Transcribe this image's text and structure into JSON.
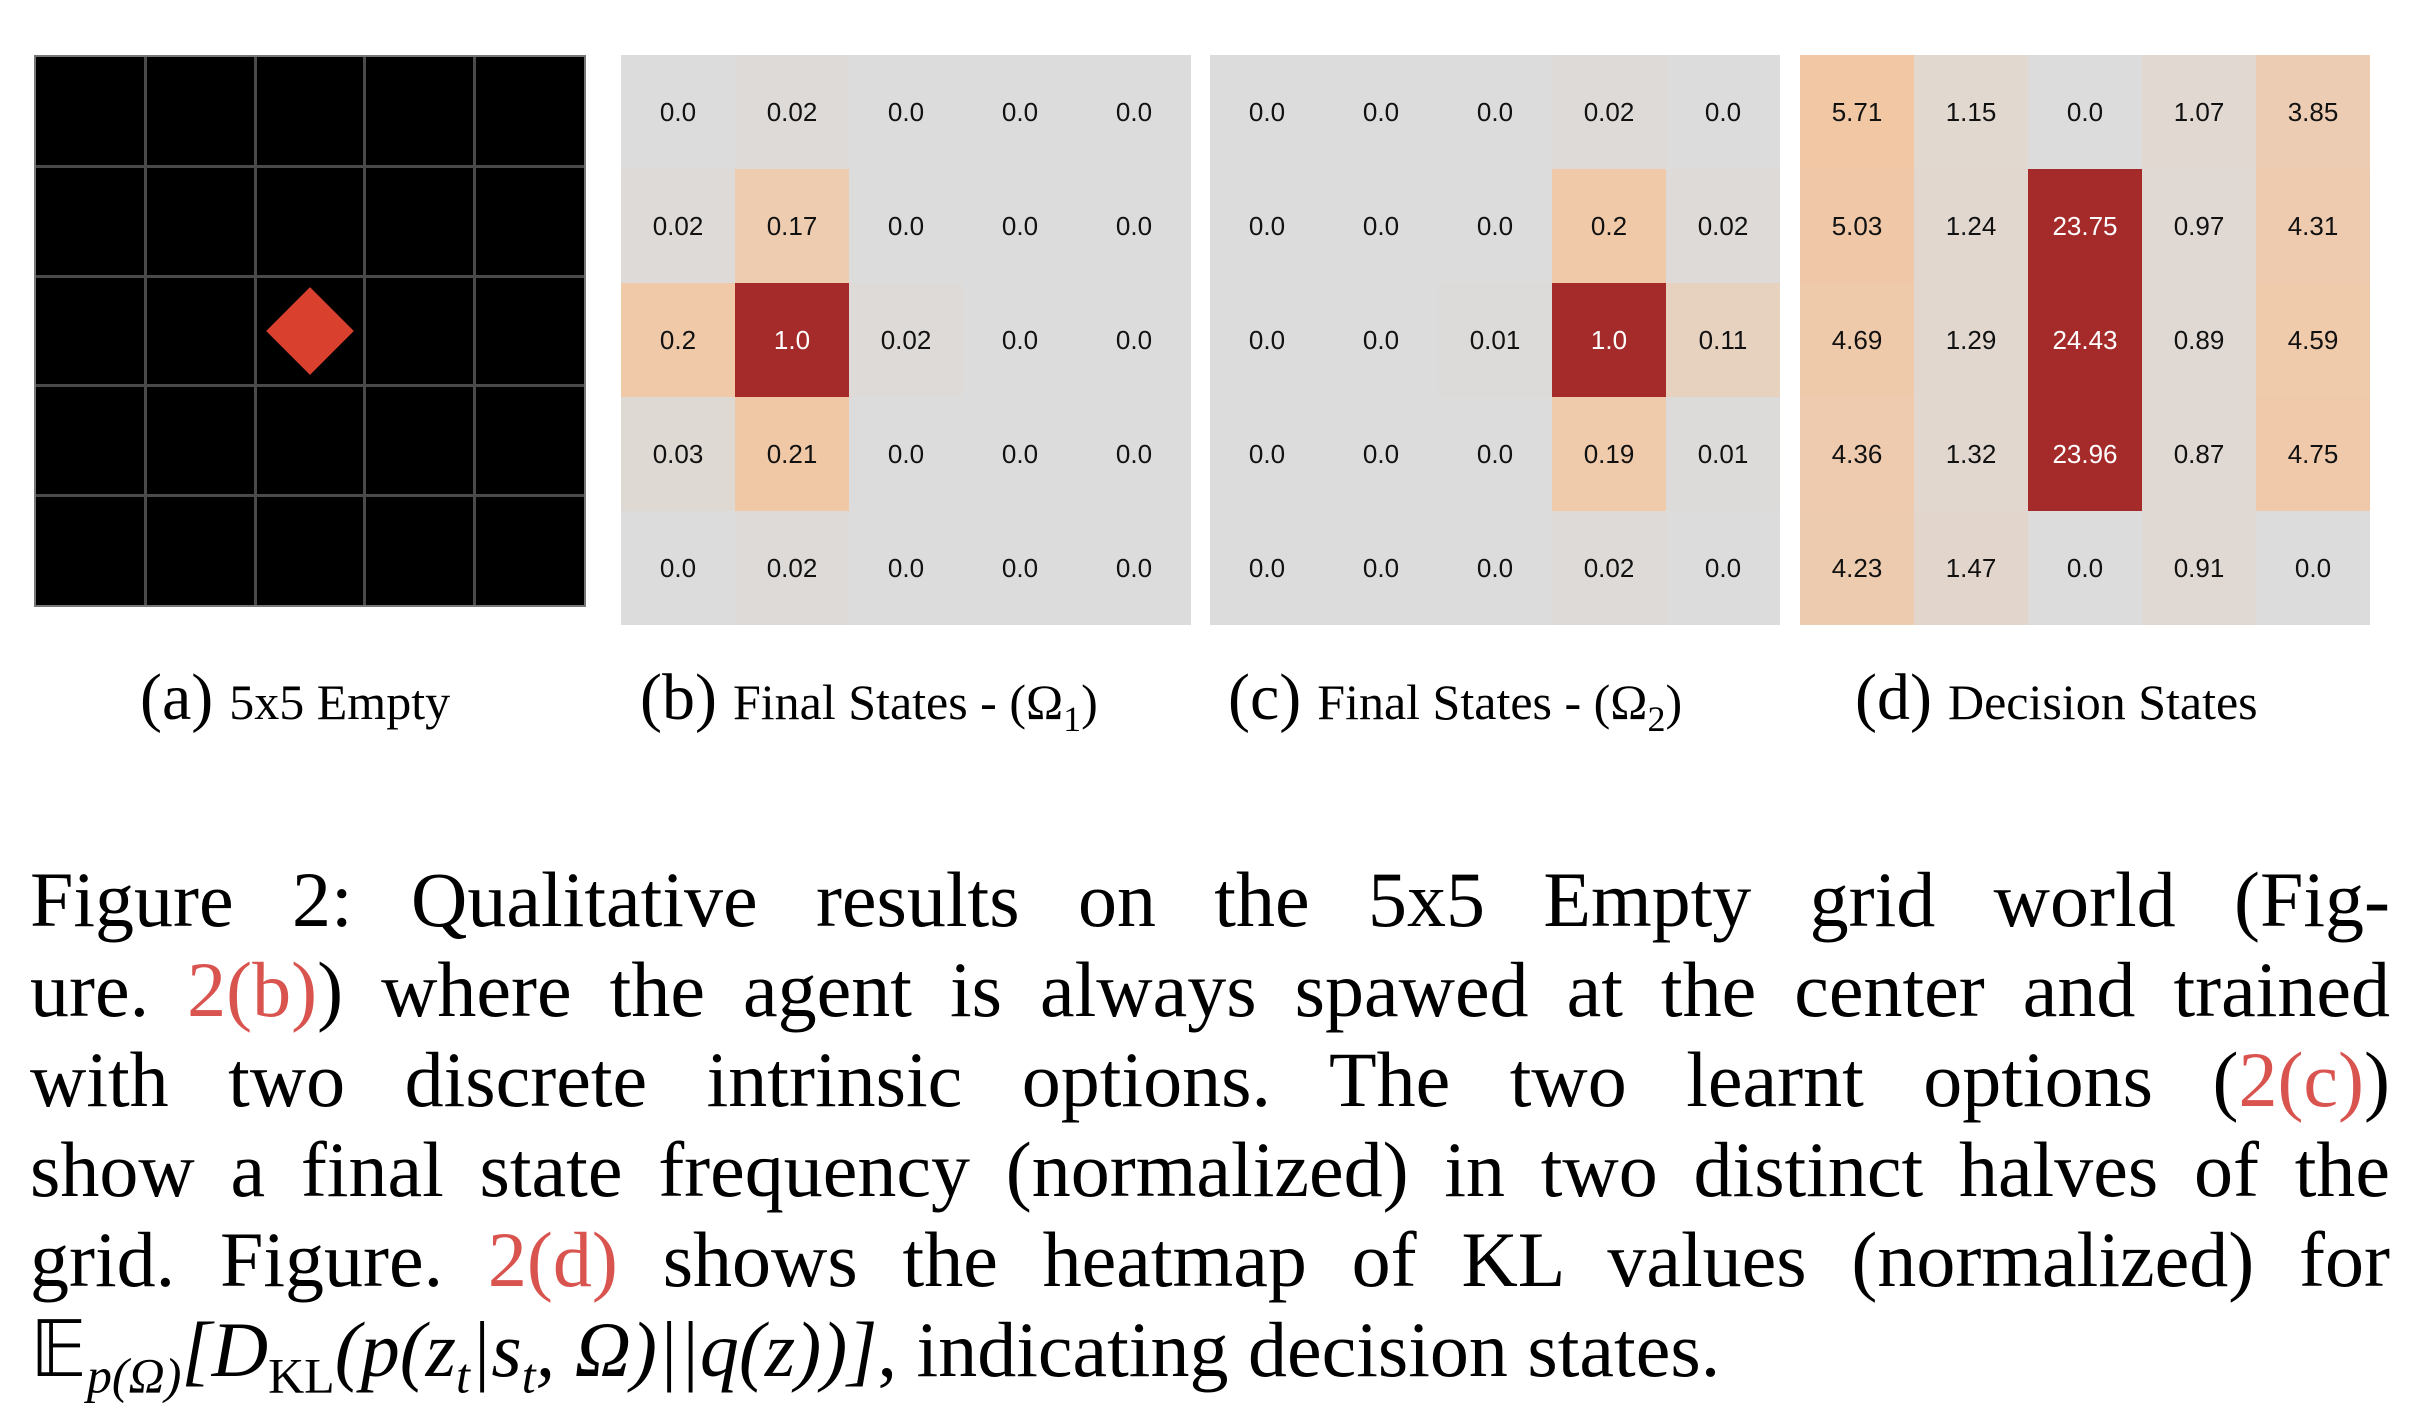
{
  "panels": [
    {
      "id": "a",
      "tag": "(a)",
      "label": "5x5 Empty",
      "grid_size": 5,
      "agent_cell": [
        2,
        2
      ],
      "agent_color": "#d9402e"
    },
    {
      "id": "b",
      "tag": "(b)",
      "label": "Final States - (Ω",
      "label_sub": "1",
      "label_end": ")",
      "values": [
        [
          "0.0",
          "0.02",
          "0.0",
          "0.0",
          "0.0"
        ],
        [
          "0.02",
          "0.17",
          "0.0",
          "0.0",
          "0.0"
        ],
        [
          "0.2",
          "1.0",
          "0.02",
          "0.0",
          "0.0"
        ],
        [
          "0.03",
          "0.21",
          "0.0",
          "0.0",
          "0.0"
        ],
        [
          "0.0",
          "0.02",
          "0.0",
          "0.0",
          "0.0"
        ]
      ]
    },
    {
      "id": "c",
      "tag": "(c)",
      "label": "Final States - (Ω",
      "label_sub": "2",
      "label_end": ")",
      "values": [
        [
          "0.0",
          "0.0",
          "0.0",
          "0.02",
          "0.0"
        ],
        [
          "0.0",
          "0.0",
          "0.0",
          "0.2",
          "0.02"
        ],
        [
          "0.0",
          "0.0",
          "0.01",
          "1.0",
          "0.11"
        ],
        [
          "0.0",
          "0.0",
          "0.0",
          "0.19",
          "0.01"
        ],
        [
          "0.0",
          "0.0",
          "0.0",
          "0.02",
          "0.0"
        ]
      ]
    },
    {
      "id": "d",
      "tag": "(d)",
      "label": "Decision States",
      "values": [
        [
          "5.71",
          "1.15",
          "0.0",
          "1.07",
          "3.85"
        ],
        [
          "5.03",
          "1.24",
          "23.75",
          "0.97",
          "4.31"
        ],
        [
          "4.69",
          "1.29",
          "24.43",
          "0.89",
          "4.59"
        ],
        [
          "4.36",
          "1.32",
          "23.96",
          "0.87",
          "4.75"
        ],
        [
          "4.23",
          "1.47",
          "0.0",
          "0.91",
          "0.0"
        ]
      ]
    }
  ],
  "colors": {
    "low": "#dcdcdc",
    "mid": "#f2c7a3",
    "high": "#a52a2a",
    "text_light": "#ffffff",
    "text_dark": "#111111",
    "ref": "#d9534f"
  },
  "caption": {
    "l1": "Figure 2:  Qualitative results on the 5x5 Empty grid world (Fig-",
    "l2a": "ure. ",
    "l2ref": "2(b)",
    "l2b": ") where the agent is always spawed at the center and trained",
    "l3": "with two discrete intrinsic options.  The two learnt options (",
    "l3ref": "2(c)",
    "l3end": ")",
    "l4": "show a final state frequency (normalized) in two distinct halves of the",
    "l5a": "grid.  Figure. ",
    "l5ref": "2(d)",
    "l5b": " shows the heatmap of KL values (normalized) for",
    "l6math_E": "𝔼",
    "l6math_sub": "p(Ω)",
    "l6math_body": "[D",
    "l6math_kl": "KL",
    "l6math_rest": "(p(z",
    "l6math_t": "t",
    "l6math_mid": "|s",
    "l6math_t2": "t",
    "l6math_end": ", Ω)||q(z))]",
    "l6text": ", indicating decision states."
  }
}
